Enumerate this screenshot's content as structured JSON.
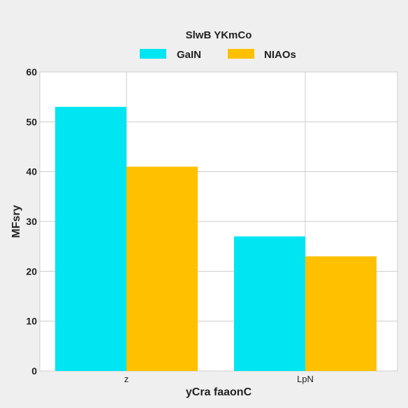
{
  "chart_data": {
    "type": "bar",
    "title": "",
    "legend_title": "SlwB YKmCo",
    "legend_position": "top-center",
    "categories": [
      "z",
      "LpN"
    ],
    "series": [
      {
        "name": "GaIN",
        "values": [
          53,
          27
        ],
        "color": "#00e5f2"
      },
      {
        "name": "NIAOs",
        "values": [
          41,
          23
        ],
        "color": "#ffc000"
      }
    ],
    "xlabel": "yCra faaonC",
    "ylabel": "MFsry",
    "ylim": [
      0,
      60
    ],
    "yticks": [
      0,
      10,
      20,
      30,
      40,
      50,
      60
    ],
    "grid": true
  }
}
